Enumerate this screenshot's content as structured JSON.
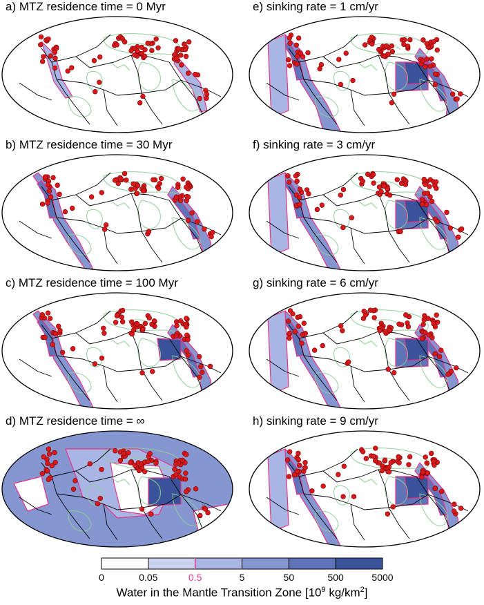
{
  "panels": [
    {
      "title": "a) MTZ residence time = 0 Myr",
      "water": 0
    },
    {
      "title": "b) MTZ residence time = 30 Myr",
      "water": 1
    },
    {
      "title": "c) MTZ residence time = 100 Myr",
      "water": 2
    },
    {
      "title": "d) MTZ residence time = ∞",
      "water": 4
    },
    {
      "title": "e) sinking rate = 1 cm/yr",
      "water": 3
    },
    {
      "title": "f) sinking rate = 3 cm/yr",
      "water": 2
    },
    {
      "title": "g) sinking rate = 6 cm/yr",
      "water": 2
    },
    {
      "title": "h) sinking rate = 9 cm/yr",
      "water": 2
    }
  ],
  "colorbar": {
    "ticks": [
      "0",
      "0.05",
      "0.5",
      "5",
      "50",
      "500",
      "5000"
    ],
    "highlight_tick": "0.5",
    "colors": [
      "#ffffff",
      "#cbd3f0",
      "#a9b6e4",
      "#8596d1",
      "#5f74b8",
      "#3a529a"
    ],
    "title_prefix": "Water in the Mantle Transition Zone [10",
    "title_sup": "9",
    "title_mid": " kg/km",
    "title_sup2": "2",
    "title_suffix": "]"
  },
  "colors": {
    "volcano": "#d7191c",
    "contour_highlight": "#e8338a",
    "plate_boundary": "#000000",
    "continent_outline": "#8fcf9a",
    "ocean_edge": "#2e6b4a"
  }
}
